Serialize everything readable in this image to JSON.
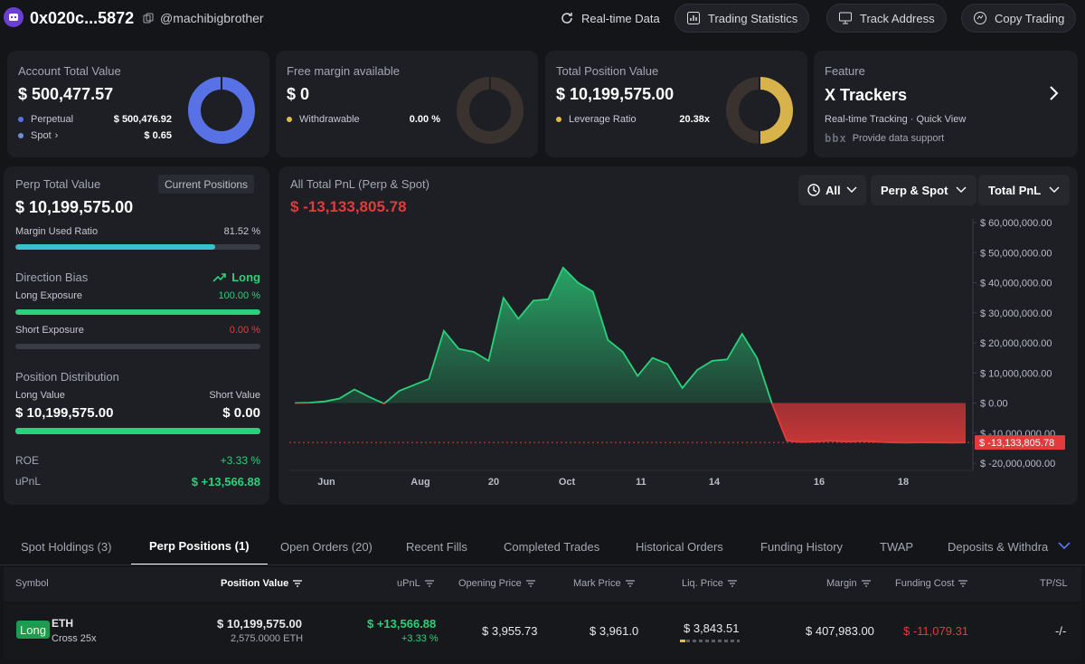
{
  "header": {
    "address": "0x020c...5872",
    "handle": "@machibigbrother",
    "buttons": [
      "Real-time Data",
      "Trading Statistics",
      "Track Address",
      "Copy Trading"
    ]
  },
  "account": {
    "label": "Account Total Value",
    "value": "$ 500,477.57",
    "perp_label": "Perpetual",
    "perp_value": "$ 500,476.92",
    "spot_label": "Spot",
    "spot_value": "$ 0.65",
    "perp_share": 0.999
  },
  "margin": {
    "label": "Free margin available",
    "value": "$ 0",
    "withdrawable_label": "Withdrawable",
    "withdrawable_value": "0.00 %",
    "fill": 0.0
  },
  "position": {
    "label": "Total Position Value",
    "value": "$ 10,199,575.00",
    "leverage_label": "Leverage Ratio",
    "leverage_value": "20.38x",
    "fill": 0.5
  },
  "feature": {
    "label": "Feature",
    "title": "X Trackers",
    "desc": "Real-time Tracking · Quick View",
    "support_logo": "bbx",
    "support": "Provide data support"
  },
  "perp": {
    "label": "Perp Total Value",
    "current_btn": "Current Positions",
    "value": "$ 10,199,575.00",
    "margin_used_label": "Margin Used Ratio",
    "margin_used_value": "81.52 %",
    "margin_used_frac": 0.8152,
    "direction_label": "Direction Bias",
    "direction_value": "Long",
    "long_exp_label": "Long Exposure",
    "long_exp_value": "100.00 %",
    "long_exp_frac": 1.0,
    "short_exp_label": "Short Exposure",
    "short_exp_value": "0.00 %",
    "short_exp_frac": 0.0,
    "dist_label": "Position Distribution",
    "long_value_label": "Long Value",
    "short_value_label": "Short Value",
    "long_value": "$ 10,199,575.00",
    "short_value": "$ 0.00",
    "roe_label": "ROE",
    "roe_value": "+3.33 %",
    "upnl_label": "uPnL",
    "upnl_value": "$ +13,566.88"
  },
  "pnl": {
    "label": "All Total PnL (Perp & Spot)",
    "value": "$ -13,133,805.78",
    "filter_time": "All",
    "filter_type": "Perp & Spot",
    "filter_metric": "Total PnL",
    "current_tag": "$ -13,133,805.78"
  },
  "chart_data": {
    "type": "area",
    "title": "All Total PnL (Perp & Spot)",
    "y_ticks": [
      "$ 60,000,000.00",
      "$ 50,000,000.00",
      "$ 40,000,000.00",
      "$ 30,000,000.00",
      "$ 20,000,000.00",
      "$ 10,000,000.00",
      "$ 0.00",
      "$ -10,000,000.00",
      "$ -20,000,000.00"
    ],
    "ylim": [
      -20000000,
      60000000
    ],
    "x_ticks": [
      "Jun",
      "Aug",
      "20",
      "Oct",
      "11",
      "14",
      "16",
      "18"
    ],
    "values": [
      0,
      100000,
      500000,
      1500000,
      4500000,
      2000000,
      -200000,
      4000000,
      6000000,
      8000000,
      24000000,
      18000000,
      17000000,
      14000000,
      35000000,
      28000000,
      34000000,
      34500000,
      45000000,
      40000000,
      37000000,
      21000000,
      17000000,
      9000000,
      15000000,
      13000000,
      5000000,
      11000000,
      14000000,
      14500000,
      23000000,
      15000000,
      0,
      -12500000,
      -13000000,
      -12800000,
      -12600000,
      -12900000,
      -12700000,
      -12900000,
      -13100000,
      -13200000,
      -13100000,
      -13150000,
      -13200000,
      -13133805.78
    ],
    "reference_value": -13133805.78
  },
  "tabs": [
    "Spot Holdings (3)",
    "Perp Positions (1)",
    "Open Orders (20)",
    "Recent Fills",
    "Completed Trades",
    "Historical Orders",
    "Funding History",
    "TWAP",
    "Deposits & Withdra"
  ],
  "table": {
    "headers": [
      "Symbol",
      "Position Value",
      "uPnL",
      "Opening Price",
      "Mark Price",
      "Liq. Price",
      "Margin",
      "Funding Cost",
      "TP/SL"
    ],
    "row": {
      "side": "Long",
      "symbol": "ETH",
      "mode": "Cross 25x",
      "position_value": "$ 10,199,575.00",
      "position_size": "2,575.0000 ETH",
      "upnl": "$ +13,566.88",
      "upnl_pct": "+3.33 %",
      "opening_price": "$ 3,955.73",
      "mark_price": "$ 3,961.0",
      "liq_price": "$ 3,843.51",
      "margin": "$ 407,983.00",
      "funding_cost": "$ -11,079.31",
      "tpsl": "-/-"
    }
  },
  "colors": {
    "blue": "#5872e6",
    "yellow": "#e3b94a",
    "green": "#2bd07a",
    "red": "#e23b3b",
    "teal": "#39c1cf"
  }
}
